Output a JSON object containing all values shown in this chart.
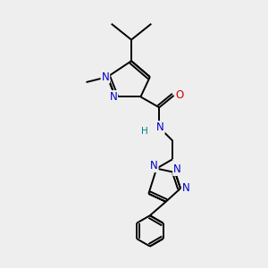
{
  "background_color": "#eeeeee",
  "bond_color": "#000000",
  "N_color": "#0000cc",
  "O_color": "#cc0000",
  "H_color": "#008080",
  "line_width": 1.4,
  "font_size": 8.5,
  "fig_width": 3.0,
  "fig_height": 3.0,
  "dpi": 100,
  "xlim": [
    0,
    10
  ],
  "ylim": [
    0,
    10
  ]
}
